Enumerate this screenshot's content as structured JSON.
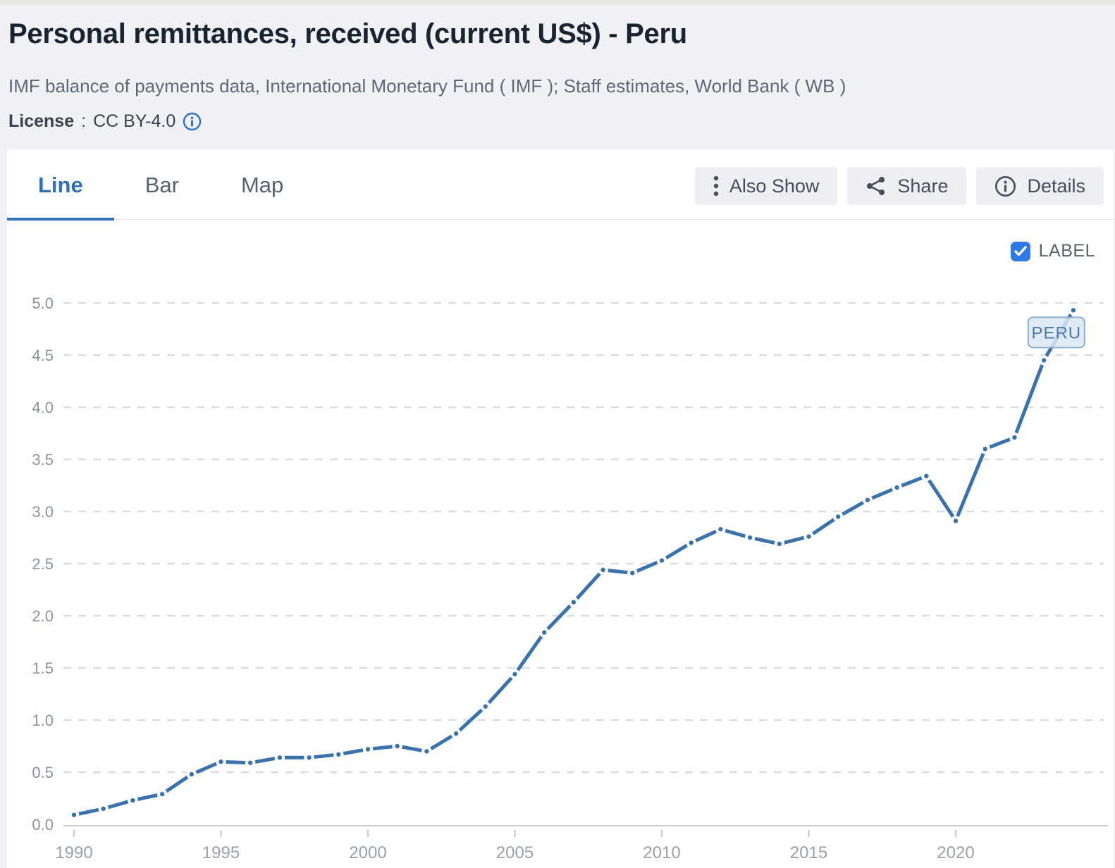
{
  "header": {
    "title": "Personal remittances, received (current US$) - Peru",
    "source": "IMF balance of payments data, International Monetary Fund ( IMF ); Staff estimates, World Bank ( WB )",
    "license_label": "License",
    "license_separator": ":",
    "license_value": "CC BY-4.0"
  },
  "tabs": [
    {
      "label": "Line",
      "active": true
    },
    {
      "label": "Bar",
      "active": false
    },
    {
      "label": "Map",
      "active": false
    }
  ],
  "toolbar": {
    "also_show_label": "Also Show",
    "share_label": "Share",
    "details_label": "Details"
  },
  "chart_controls": {
    "label_toggle": "LABEL",
    "checked": true
  },
  "colors": {
    "accent_blue": "#2d70b5",
    "line": "#3a72ab",
    "checkbox_blue": "#2e7ae5",
    "grid": "#d9dce0",
    "axis": "#c7ccd1",
    "y_tick_label": "#8b939c",
    "x_tick_label": "#9aa1a8",
    "series_label_bg": "#dbe7f3",
    "series_label_border": "#8aadd2",
    "series_label_text": "#4a7cab"
  },
  "chart_data": {
    "type": "line",
    "title": "Personal remittances, received (current US$) - Peru",
    "x": [
      1990,
      1991,
      1992,
      1993,
      1994,
      1995,
      1996,
      1997,
      1998,
      1999,
      2000,
      2001,
      2002,
      2003,
      2004,
      2005,
      2006,
      2007,
      2008,
      2009,
      2010,
      2011,
      2012,
      2013,
      2014,
      2015,
      2016,
      2017,
      2018,
      2019,
      2020,
      2021,
      2022,
      2023,
      2024
    ],
    "series": [
      {
        "name": "PERU",
        "values": [
          0.09,
          0.15,
          0.23,
          0.29,
          0.48,
          0.6,
          0.59,
          0.64,
          0.64,
          0.67,
          0.72,
          0.75,
          0.7,
          0.87,
          1.13,
          1.44,
          1.84,
          2.13,
          2.44,
          2.41,
          2.53,
          2.7,
          2.83,
          2.75,
          2.69,
          2.76,
          2.95,
          3.11,
          3.23,
          3.34,
          2.91,
          3.6,
          3.71,
          4.45,
          4.93
        ]
      }
    ],
    "xlabel": "",
    "ylabel": "",
    "ylim": [
      0,
      5
    ],
    "ytick_step": 0.5,
    "xticks": [
      1990,
      1995,
      2000,
      2005,
      2010,
      2015,
      2020
    ],
    "grid": "horizontal-dashed",
    "legend": "end-of-line-label",
    "end_label": "PERU"
  }
}
